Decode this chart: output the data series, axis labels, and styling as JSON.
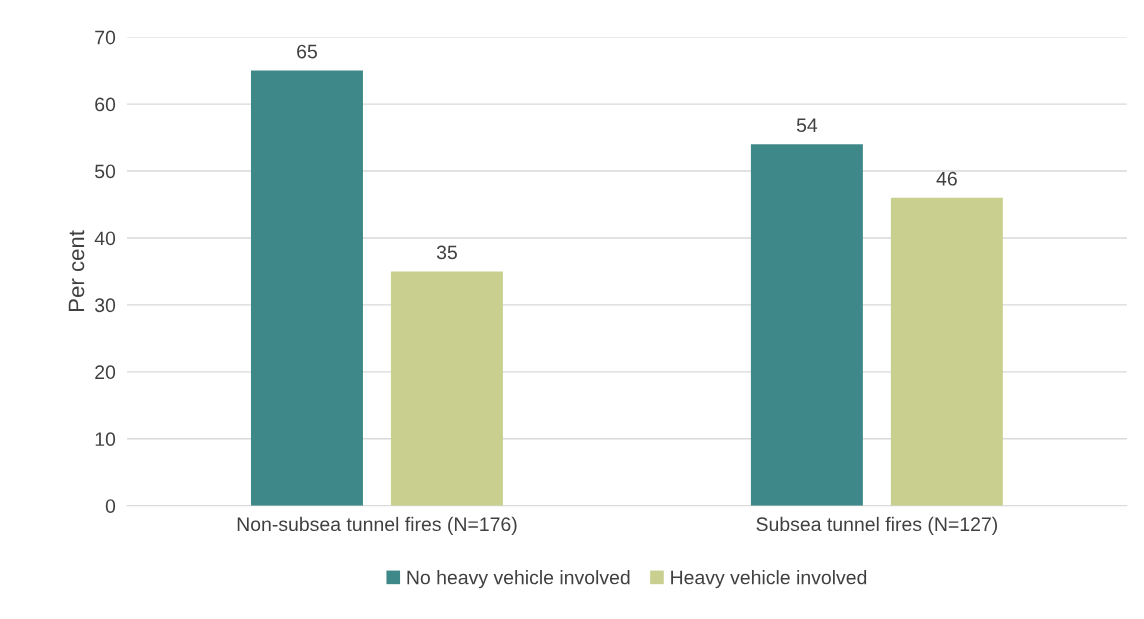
{
  "chart_data": {
    "type": "bar",
    "ylabel": "Per cent",
    "categories": [
      "Non-subsea tunnel fires (N=176)",
      "Subsea tunnel fires (N=127)"
    ],
    "series": [
      {
        "name": "No heavy vehicle involved",
        "color": "#3f888a",
        "values": [
          65,
          54
        ]
      },
      {
        "name": "Heavy vehicle involved",
        "color": "#c8cf8f",
        "values": [
          35,
          46
        ]
      }
    ],
    "ylim": [
      0,
      70
    ],
    "yticks": [
      0,
      10,
      20,
      30,
      40,
      50,
      60,
      70
    ],
    "grid": "y",
    "legend": "bottom",
    "data_labels": true
  }
}
